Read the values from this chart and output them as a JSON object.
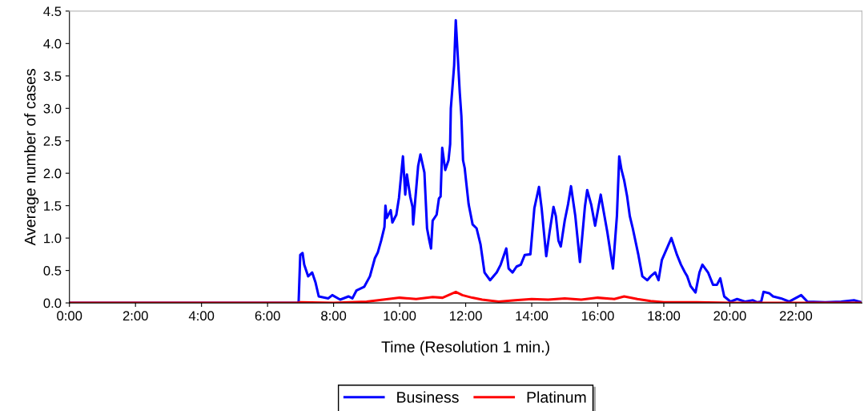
{
  "chart_data": {
    "type": "line",
    "xlabel": "Time (Resolution 1 min.)",
    "ylabel": "Average number of cases",
    "xlim": [
      0,
      24
    ],
    "xticks": [
      {
        "value": 0,
        "label": "0:00"
      },
      {
        "value": 2,
        "label": "2:00"
      },
      {
        "value": 4,
        "label": "4:00"
      },
      {
        "value": 6,
        "label": "6:00"
      },
      {
        "value": 8,
        "label": "8:00"
      },
      {
        "value": 10,
        "label": "10:00"
      },
      {
        "value": 12,
        "label": "12:00"
      },
      {
        "value": 14,
        "label": "14:00"
      },
      {
        "value": 16,
        "label": "16:00"
      },
      {
        "value": 18,
        "label": "18:00"
      },
      {
        "value": 20,
        "label": "20:00"
      },
      {
        "value": 22,
        "label": "22:00"
      }
    ],
    "ylim": [
      0,
      4.5
    ],
    "yticks": [
      {
        "value": 0,
        "label": "0.0"
      },
      {
        "value": 0.5,
        "label": "0.5"
      },
      {
        "value": 1,
        "label": "1.0"
      },
      {
        "value": 1.5,
        "label": "1.5"
      },
      {
        "value": 2,
        "label": "2.0"
      },
      {
        "value": 2.5,
        "label": "2.5"
      },
      {
        "value": 3,
        "label": "3.0"
      },
      {
        "value": 3.5,
        "label": "3.5"
      },
      {
        "value": 4,
        "label": "4.0"
      },
      {
        "value": 4.5,
        "label": "4.5"
      }
    ],
    "grid": false,
    "legend": "bottom",
    "marker": "none",
    "line_style": "solid",
    "series": [
      {
        "name": "Business",
        "color": "#0000ff",
        "x": [
          0,
          6.94,
          6.99,
          7.06,
          7.11,
          7.23,
          7.35,
          7.45,
          7.55,
          7.84,
          7.96,
          8.2,
          8.45,
          8.57,
          8.69,
          8.93,
          9.1,
          9.25,
          9.34,
          9.44,
          9.54,
          9.57,
          9.61,
          9.73,
          9.78,
          9.9,
          9.98,
          10.1,
          10.17,
          10.22,
          10.32,
          10.39,
          10.41,
          10.56,
          10.63,
          10.75,
          10.83,
          10.9,
          10.95,
          11.0,
          11.12,
          11.19,
          11.24,
          11.29,
          11.38,
          11.48,
          11.53,
          11.55,
          11.65,
          11.7,
          11.72,
          11.82,
          11.87,
          11.92,
          11.97,
          12.01,
          12.09,
          12.21,
          12.33,
          12.45,
          12.57,
          12.74,
          12.94,
          13.06,
          13.23,
          13.3,
          13.42,
          13.54,
          13.67,
          13.79,
          13.96,
          14.08,
          14.22,
          14.3,
          14.44,
          14.54,
          14.66,
          14.73,
          14.81,
          14.88,
          15.0,
          15.1,
          15.19,
          15.32,
          15.46,
          15.61,
          15.68,
          15.8,
          15.92,
          16.09,
          16.14,
          16.29,
          16.46,
          16.58,
          16.65,
          16.72,
          16.8,
          16.89,
          16.97,
          17.06,
          17.23,
          17.35,
          17.5,
          17.6,
          17.74,
          17.84,
          17.94,
          18.23,
          18.4,
          18.52,
          18.64,
          18.71,
          18.81,
          18.96,
          19.08,
          19.17,
          19.34,
          19.49,
          19.61,
          19.71,
          19.83,
          20.02,
          20.22,
          20.46,
          20.7,
          20.83,
          20.95,
          21.02,
          21.19,
          21.31,
          21.55,
          21.8,
          22.16,
          22.35,
          22.89,
          23.37,
          23.76,
          23.98
        ],
        "values": [
          0,
          0,
          0.74,
          0.77,
          0.59,
          0.41,
          0.47,
          0.32,
          0.1,
          0.07,
          0.12,
          0.05,
          0.1,
          0.07,
          0.19,
          0.25,
          0.41,
          0.69,
          0.78,
          0.96,
          1.17,
          1.5,
          1.31,
          1.43,
          1.24,
          1.36,
          1.62,
          2.26,
          1.67,
          1.98,
          1.64,
          1.48,
          1.21,
          2.11,
          2.29,
          2.01,
          1.15,
          0.96,
          0.84,
          1.27,
          1.36,
          1.61,
          1.64,
          2.39,
          2.05,
          2.2,
          2.45,
          3.0,
          3.66,
          4.36,
          4.18,
          3.25,
          2.88,
          2.2,
          2.08,
          1.89,
          1.52,
          1.21,
          1.15,
          0.9,
          0.47,
          0.35,
          0.47,
          0.59,
          0.84,
          0.53,
          0.47,
          0.56,
          0.59,
          0.74,
          0.75,
          1.46,
          1.79,
          1.46,
          0.72,
          1.09,
          1.48,
          1.34,
          0.96,
          0.87,
          1.27,
          1.52,
          1.8,
          1.34,
          0.63,
          1.48,
          1.74,
          1.52,
          1.19,
          1.67,
          1.52,
          1.09,
          0.53,
          1.34,
          2.26,
          2.05,
          1.89,
          1.64,
          1.34,
          1.15,
          0.74,
          0.41,
          0.35,
          0.41,
          0.47,
          0.35,
          0.66,
          1.0,
          0.74,
          0.59,
          0.47,
          0.41,
          0.26,
          0.16,
          0.47,
          0.59,
          0.47,
          0.28,
          0.28,
          0.38,
          0.1,
          0.02,
          0.06,
          0.02,
          0.04,
          0.01,
          0.02,
          0.17,
          0.15,
          0.1,
          0.07,
          0.02,
          0.12,
          0.02,
          0.01,
          0.02,
          0.04,
          0.01
        ]
      },
      {
        "name": "Platinum",
        "color": "#ff0000",
        "x": [
          0,
          6.9,
          7.0,
          8.0,
          9.0,
          9.5,
          10.0,
          10.5,
          11.0,
          11.3,
          11.7,
          11.9,
          12.2,
          12.5,
          13.0,
          13.5,
          14.0,
          14.5,
          15.0,
          15.5,
          16.0,
          16.5,
          16.8,
          17.2,
          17.6,
          18.0,
          19.0,
          20.0,
          23.98
        ],
        "values": [
          0,
          0,
          0.01,
          0.0,
          0.02,
          0.05,
          0.08,
          0.06,
          0.09,
          0.08,
          0.17,
          0.12,
          0.08,
          0.05,
          0.02,
          0.04,
          0.06,
          0.05,
          0.07,
          0.05,
          0.08,
          0.06,
          0.1,
          0.06,
          0.03,
          0.01,
          0.01,
          0,
          0
        ]
      }
    ]
  }
}
